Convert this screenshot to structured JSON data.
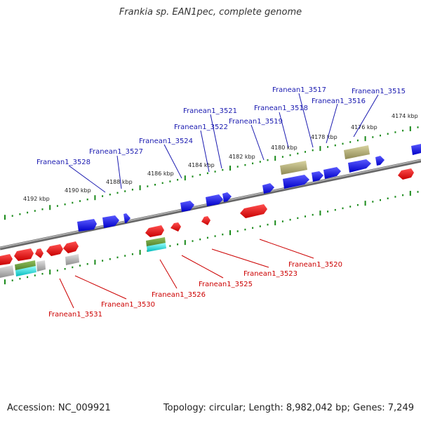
{
  "title": "Frankia sp. EAN1pec, complete genome",
  "footer": {
    "accession": "Accession: NC_009921",
    "stats": "Topology: circular; Length: 8,982,042 bp; Genes: 7,249"
  },
  "colors": {
    "plus_strand": "#1a1aff",
    "minus_strand": "#e60000",
    "plus_label": "#1a1ab0",
    "minus_label": "#cc0000",
    "backbone": "#888888",
    "tick": "#1a8a1a",
    "rna_olive": "#b3ae72",
    "grey_feature": "#b0b0b0"
  },
  "scale_ticks": [
    {
      "label": "4192 kbp"
    },
    {
      "label": "4190 kbp"
    },
    {
      "label": "4188 kbp"
    },
    {
      "label": "4186 kbp"
    },
    {
      "label": "4184 kbp"
    },
    {
      "label": "4182 kbp"
    },
    {
      "label": "4180 kbp"
    },
    {
      "label": "4178 kbp"
    },
    {
      "label": "4176 kbp"
    },
    {
      "label": "4174 kbp"
    }
  ],
  "plus_genes": [
    {
      "label": "Franean1_3528"
    },
    {
      "label": "Franean1_3527"
    },
    {
      "label": "Franean1_3524"
    },
    {
      "label": "Franean1_3522"
    },
    {
      "label": "Franean1_3521"
    },
    {
      "label": "Franean1_3519"
    },
    {
      "label": "Franean1_3518"
    },
    {
      "label": "Franean1_3517"
    },
    {
      "label": "Franean1_3516"
    },
    {
      "label": "Franean1_3515"
    }
  ],
  "minus_genes": [
    {
      "label": "Franean1_3531"
    },
    {
      "label": "Franean1_3530"
    },
    {
      "label": "Franean1_3526"
    },
    {
      "label": "Franean1_3525"
    },
    {
      "label": "Franean1_3523"
    },
    {
      "label": "Franean1_3520"
    }
  ]
}
